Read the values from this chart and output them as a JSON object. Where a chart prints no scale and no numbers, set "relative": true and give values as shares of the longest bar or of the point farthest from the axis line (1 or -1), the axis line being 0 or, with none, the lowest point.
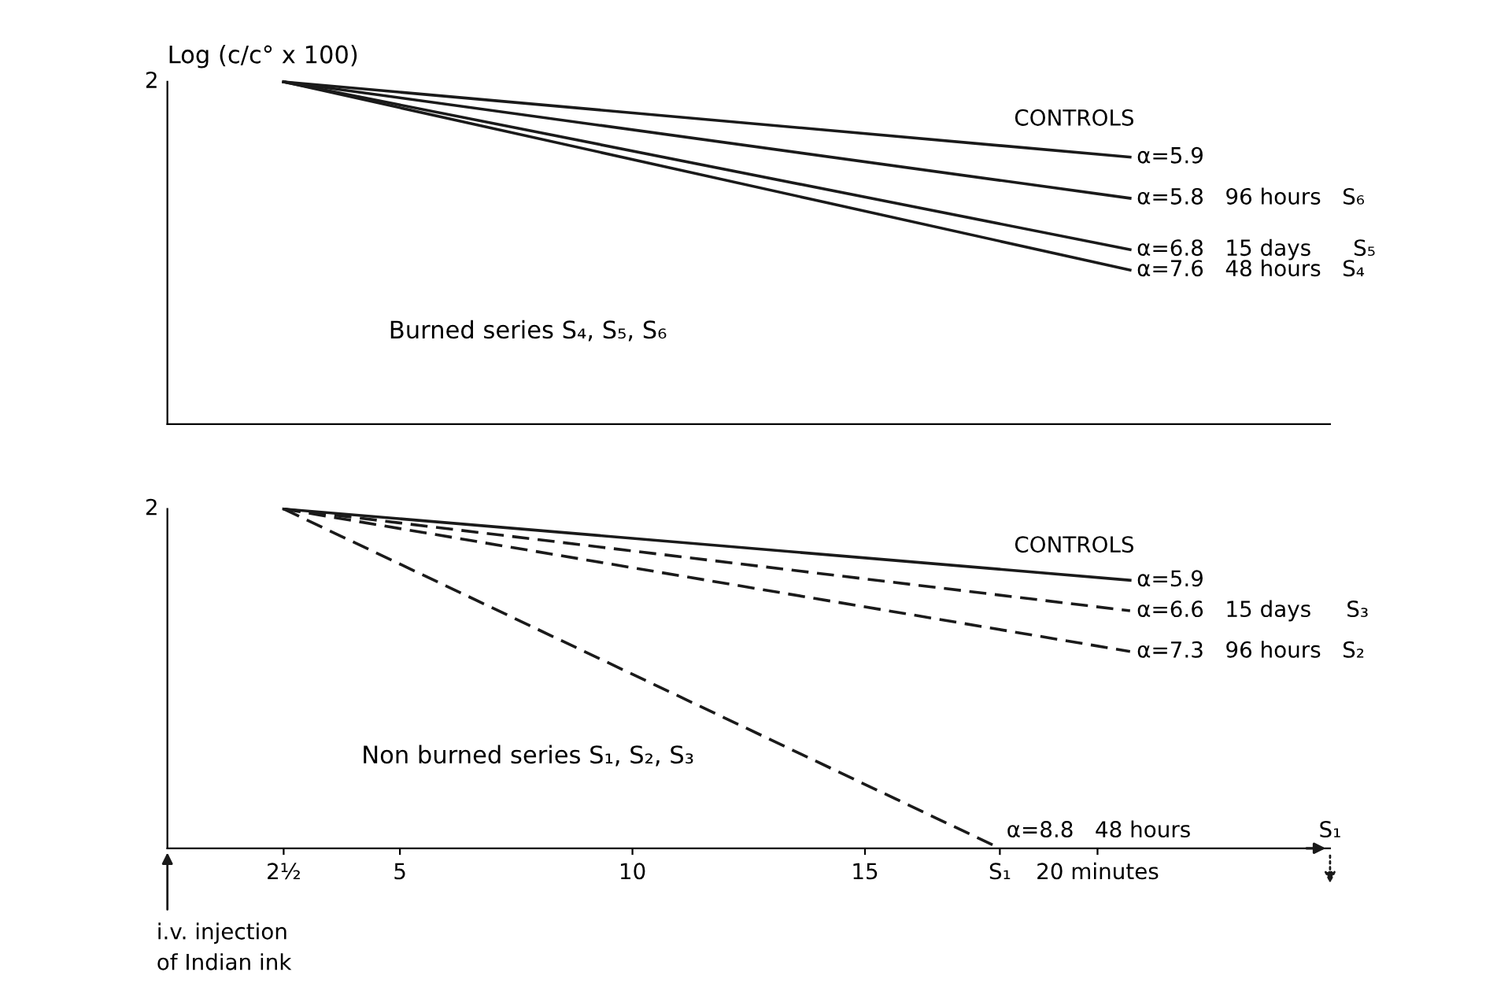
{
  "chart_data": [
    {
      "type": "line",
      "title": "Burned series S₄, S₅, S₆",
      "ylabel": "Log (c/c° x 100)",
      "relative": true,
      "xlim": [
        0,
        25
      ],
      "tick_labels": false,
      "series": [
        {
          "name": "α=5.9",
          "color": "#1a1a1a",
          "line_style": "solid",
          "x": [
            2.5,
            20.7
          ],
          "values": [
            1,
            0.78
          ]
        },
        {
          "name": "α=5.8   96 hours   S₆",
          "color": "#1a1a1a",
          "line_style": "solid",
          "x": [
            2.5,
            20.7
          ],
          "values": [
            1,
            0.66
          ]
        },
        {
          "name": "α=6.8   15 days      S₅",
          "color": "#1a1a1a",
          "line_style": "solid",
          "x": [
            2.5,
            20.7
          ],
          "values": [
            1,
            0.51
          ]
        },
        {
          "name": "α=7.6   48 hours   S₄",
          "color": "#1a1a1a",
          "line_style": "solid",
          "x": [
            2.5,
            20.7
          ],
          "values": [
            1,
            0.45
          ]
        }
      ],
      "annotations": [
        "2",
        "CONTROLS"
      ]
    },
    {
      "type": "line",
      "title": "Non burned series S₁, S₂, S₃",
      "relative": true,
      "xlim": [
        0,
        25
      ],
      "tick_labels": "x",
      "xticks": [
        {
          "value": 2.5,
          "label": "2½"
        },
        5,
        10,
        15,
        {
          "value": 17.9,
          "label": "S₁"
        },
        {
          "value": 20,
          "label": "20 minutes"
        }
      ],
      "series": [
        {
          "name": "α=5.9",
          "color": "#1a1a1a",
          "line_style": "solid",
          "x": [
            2.5,
            20.7
          ],
          "values": [
            1,
            0.79
          ]
        },
        {
          "name": "α=6.6   15 days     S₃",
          "color": "#1a1a1a",
          "line_style": "dashed",
          "x": [
            2.5,
            20.7
          ],
          "values": [
            1,
            0.7
          ]
        },
        {
          "name": "α=7.3   96 hours   S₂",
          "color": "#1a1a1a",
          "line_style": "dashed",
          "x": [
            2.5,
            20.7
          ],
          "values": [
            1,
            0.58
          ]
        },
        {
          "name": "α=8.8   48 hours",
          "color": "#1a1a1a",
          "line_style": "dashed",
          "x": [
            2.5,
            17.9
          ],
          "values": [
            1,
            0
          ]
        }
      ],
      "annotations": [
        "2",
        "CONTROLS",
        "i.v. injection",
        "of Indian ink",
        "S₁"
      ]
    }
  ]
}
